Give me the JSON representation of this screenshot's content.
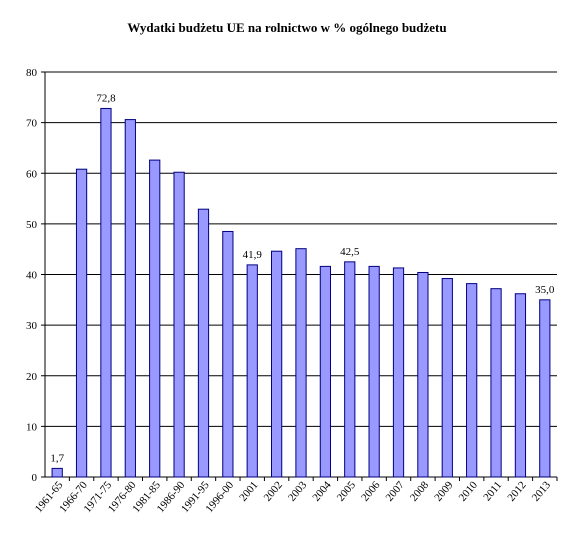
{
  "chart_data": {
    "type": "bar",
    "title": "Wydatki budżetu UE na rolnictwo w % ogólnego budżetu",
    "xlabel": "",
    "ylabel": "",
    "ylim": [
      0,
      80
    ],
    "yticks": [
      0,
      10,
      20,
      30,
      40,
      50,
      60,
      70,
      80
    ],
    "grid": true,
    "legend": "none",
    "categories": [
      "1961-65",
      "1966-70",
      "1971-75",
      "1976-80",
      "1981-85",
      "1986-90",
      "1991-95",
      "1996-00",
      "2001",
      "2002",
      "2003",
      "2004",
      "2005",
      "2006",
      "2007",
      "2008",
      "2009",
      "2010",
      "2011",
      "2012",
      "2013"
    ],
    "values": [
      1.7,
      60.8,
      72.8,
      70.6,
      62.6,
      60.2,
      52.9,
      48.5,
      41.9,
      44.6,
      45.1,
      41.6,
      42.5,
      41.6,
      41.3,
      40.4,
      39.2,
      38.2,
      37.2,
      36.2,
      35.0
    ],
    "data_labels": [
      {
        "index": 0,
        "text": "1,7"
      },
      {
        "index": 2,
        "text": "72,8"
      },
      {
        "index": 8,
        "text": "41,9"
      },
      {
        "index": 12,
        "text": "42,5"
      },
      {
        "index": 20,
        "text": "35,0"
      }
    ],
    "colors": {
      "bar_fill": "#9999ff",
      "bar_stroke": "#000080",
      "plot_background": "#ffffff",
      "grid": "#000000"
    }
  }
}
